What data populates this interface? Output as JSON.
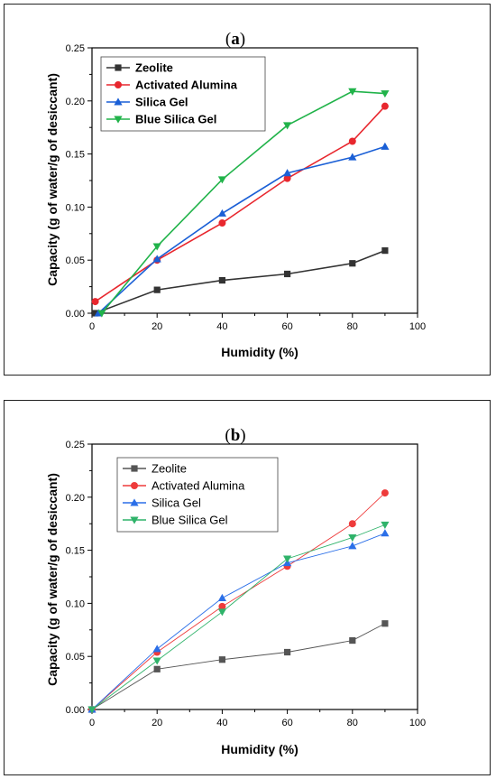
{
  "chart_data": [
    {
      "panel_label_open": "(",
      "panel_label_letter": "a",
      "panel_label_close": ")",
      "type": "line",
      "xlabel": "Humidity (%)",
      "ylabel": "Capacity (g of water/g of desiccant)",
      "xlim": [
        0,
        100
      ],
      "ylim": [
        0,
        0.25
      ],
      "xticks": [
        0,
        20,
        40,
        60,
        80,
        100
      ],
      "yticks": [
        0.0,
        0.05,
        0.1,
        0.15,
        0.2,
        0.25
      ],
      "ytick_labels": [
        "0.00",
        "0.05",
        "0.10",
        "0.15",
        "0.20",
        "0.25"
      ],
      "grid": false,
      "legend_position": "top-left",
      "legend_bold": true,
      "series": [
        {
          "name": "Zeolite",
          "color": "#333333",
          "marker": "square",
          "x": [
            1,
            20,
            40,
            60,
            80,
            90
          ],
          "values": [
            0.0,
            0.022,
            0.031,
            0.037,
            0.047,
            0.059
          ]
        },
        {
          "name": "Activated Alumina",
          "color": "#e8272e",
          "marker": "circle",
          "x": [
            1,
            20,
            40,
            60,
            80,
            90
          ],
          "values": [
            0.011,
            0.05,
            0.085,
            0.127,
            0.162,
            0.195
          ]
        },
        {
          "name": "Silica Gel",
          "color": "#1a5fd6",
          "marker": "triangle-up",
          "x": [
            2,
            20,
            40,
            60,
            80,
            90
          ],
          "values": [
            0.0,
            0.051,
            0.094,
            0.132,
            0.147,
            0.157
          ]
        },
        {
          "name": "Blue Silica Gel",
          "color": "#21b34a",
          "marker": "triangle-down",
          "x": [
            3,
            20,
            40,
            60,
            80,
            90
          ],
          "values": [
            0.0,
            0.063,
            0.126,
            0.177,
            0.209,
            0.207
          ]
        }
      ]
    },
    {
      "panel_label_open": "(",
      "panel_label_letter": "b",
      "panel_label_close": ")",
      "type": "line",
      "xlabel": "Humidity (%)",
      "ylabel": "Capacity (g of water/g of desiccant)",
      "xlim": [
        0,
        100
      ],
      "ylim": [
        0,
        0.25
      ],
      "xticks": [
        0,
        20,
        40,
        60,
        80,
        100
      ],
      "yticks": [
        0.0,
        0.05,
        0.1,
        0.15,
        0.2,
        0.25
      ],
      "ytick_labels": [
        "0.00",
        "0.05",
        "0.10",
        "0.15",
        "0.20",
        "0.25"
      ],
      "grid": false,
      "legend_position": "top-left",
      "legend_bold": false,
      "series": [
        {
          "name": "Zeolite",
          "color": "#555555",
          "marker": "square",
          "x": [
            0,
            20,
            40,
            60,
            80,
            90
          ],
          "values": [
            0.0,
            0.038,
            0.047,
            0.054,
            0.065,
            0.081
          ]
        },
        {
          "name": "Activated Alumina",
          "color": "#ee3b3b",
          "marker": "circle",
          "x": [
            0,
            20,
            40,
            60,
            80,
            90
          ],
          "values": [
            0.0,
            0.054,
            0.097,
            0.135,
            0.175,
            0.204
          ]
        },
        {
          "name": "Silica Gel",
          "color": "#2b6fe8",
          "marker": "triangle-up",
          "x": [
            0,
            20,
            40,
            60,
            80,
            90
          ],
          "values": [
            0.0,
            0.057,
            0.105,
            0.138,
            0.154,
            0.166
          ]
        },
        {
          "name": "Blue Silica Gel",
          "color": "#2fb36a",
          "marker": "triangle-down",
          "x": [
            0,
            20,
            40,
            60,
            80,
            90
          ],
          "values": [
            0.0,
            0.046,
            0.092,
            0.142,
            0.162,
            0.174
          ]
        }
      ]
    }
  ]
}
